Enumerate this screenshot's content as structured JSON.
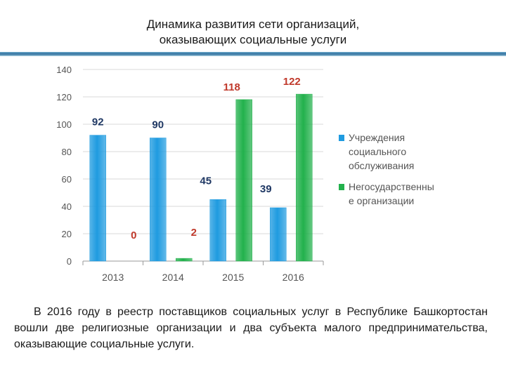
{
  "title_lines": [
    "Динамика развития сети организаций,",
    "оказывающих социальные услуги"
  ],
  "caption": "В 2016 году в реестр поставщиков социальных услуг в Республике Башкортостан вошли две религиозные организации и два субъекта малого предпринимательства, оказывающие социальные услуги.",
  "chart_data": {
    "type": "bar",
    "categories": [
      "2013",
      "2014",
      "2015",
      "2016"
    ],
    "series": [
      {
        "name": "Учреждения социального обслуживания",
        "values": [
          92,
          90,
          45,
          39
        ],
        "color": "#1f9be0",
        "label_color": "#1f3864"
      },
      {
        "name": "Негосударственные организации",
        "values": [
          0,
          2,
          118,
          122
        ],
        "color": "#22b14c",
        "label_color": "#c0392b"
      }
    ],
    "legend_lines": [
      [
        "Учреждения",
        "социального",
        "обслуживания"
      ],
      [
        "Негосударственны",
        "е организации"
      ]
    ],
    "yticks": [
      0,
      20,
      40,
      60,
      80,
      100,
      120,
      140
    ],
    "ylim": [
      0,
      140
    ],
    "grid": true,
    "legend_position": "right"
  }
}
